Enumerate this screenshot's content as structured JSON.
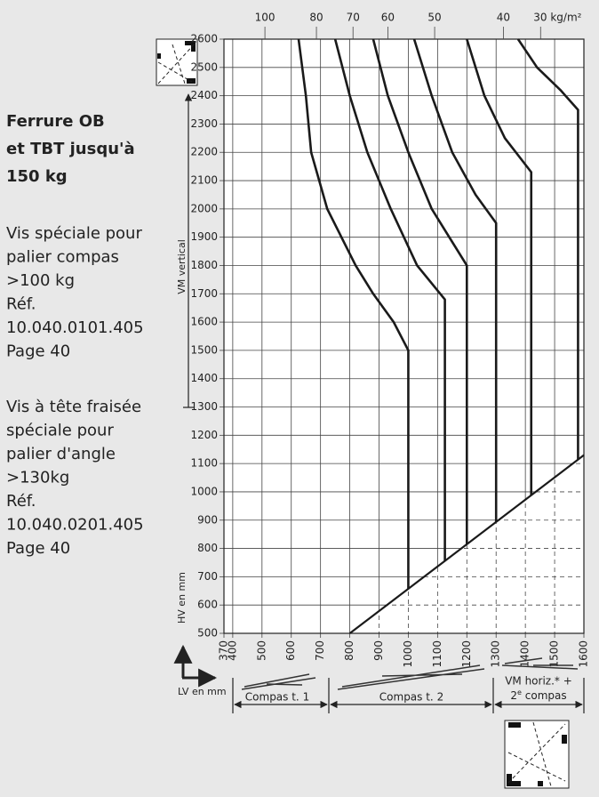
{
  "side_text": {
    "heading": [
      "Ferrure OB",
      "et TBT jusqu'à",
      "150 kg"
    ],
    "note1": [
      "Vis spéciale pour",
      "palier compas",
      ">100 kg",
      "Réf.",
      "10.040.0101.405",
      "Page 40"
    ],
    "note2": [
      "Vis à tête fraisée",
      "spéciale pour",
      "palier d'angle",
      ">130kg",
      "Réf.",
      "10.040.0201.405",
      "Page 40"
    ]
  },
  "chart_data": {
    "type": "line",
    "y_label_range": "VM vertical",
    "y_label": "HV en mm",
    "x_label": "LV en mm",
    "xlim": [
      370,
      1600
    ],
    "ylim": [
      500,
      2600
    ],
    "xticks": [
      370,
      400,
      500,
      600,
      700,
      800,
      900,
      1000,
      1100,
      1200,
      1300,
      1400,
      1500,
      1600
    ],
    "yticks": [
      500,
      600,
      700,
      800,
      900,
      1000,
      1100,
      1200,
      1300,
      1400,
      1500,
      1600,
      1700,
      1800,
      1900,
      2000,
      2100,
      2200,
      2300,
      2400,
      2500,
      2600
    ],
    "x2ticks": [
      {
        "value": 510,
        "label": "100"
      },
      {
        "value": 686,
        "label": "80"
      },
      {
        "value": 811,
        "label": "70"
      },
      {
        "value": 930,
        "label": "60"
      },
      {
        "value": 1090,
        "label": "50"
      },
      {
        "value": 1325,
        "label": "40"
      },
      {
        "value": 1452,
        "label": "30 kg/m²"
      }
    ],
    "grid": true,
    "color": "#1a1a1a",
    "series": [
      {
        "x": [
          625,
          650,
          668,
          723,
          820,
          880,
          950,
          1000,
          1000
        ],
        "values": [
          2600,
          2400,
          2200,
          2000,
          1800,
          1700,
          1600,
          1500,
          657
        ]
      },
      {
        "x": [
          750,
          800,
          860,
          940,
          1030,
          1125,
          1125
        ],
        "values": [
          2600,
          2400,
          2200,
          2000,
          1800,
          1680,
          756
        ]
      },
      {
        "x": [
          880,
          930,
          1000,
          1080,
          1200,
          1200
        ],
        "values": [
          2600,
          2400,
          2200,
          2000,
          1800,
          815
        ]
      },
      {
        "x": [
          1020,
          1080,
          1150,
          1230,
          1300,
          1300
        ],
        "values": [
          2600,
          2400,
          2200,
          2050,
          1950,
          894
        ]
      },
      {
        "x": [
          1200,
          1260,
          1330,
          1420,
          1420
        ],
        "values": [
          2600,
          2400,
          2250,
          2130,
          988
        ]
      },
      {
        "x": [
          1375,
          1440,
          1520,
          1580,
          1580
        ],
        "values": [
          2600,
          2500,
          2420,
          2350,
          1114
        ]
      }
    ],
    "limit_line": {
      "x": [
        800,
        1600
      ],
      "values": [
        500,
        1130
      ]
    },
    "zones": [
      "Compas t. 1",
      "Compas t. 2",
      "VM horiz.* +",
      "compas"
    ],
    "zone_superscript": {
      "prefix": "2",
      "sup": "e"
    }
  }
}
